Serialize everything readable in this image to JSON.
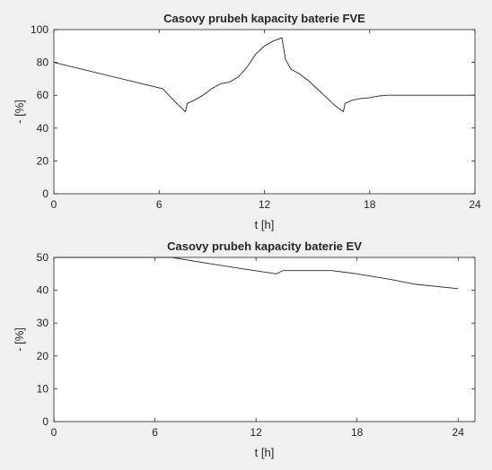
{
  "colors": {
    "figure_bg": "#f0f0f0",
    "axes_bg": "#ffffff",
    "line": "#262626",
    "axis": "#262626"
  },
  "chart_data": [
    {
      "type": "line",
      "title": "Casovy prubeh kapacity baterie FVE",
      "xlabel": "t [h]",
      "ylabel": "- [%]",
      "xlim": [
        0,
        24
      ],
      "ylim": [
        0,
        100
      ],
      "xticks": [
        0,
        6,
        12,
        18,
        24
      ],
      "yticks": [
        0,
        20,
        40,
        60,
        80,
        100
      ],
      "grid": false,
      "series": [
        {
          "x": [
            0,
            6.2,
            7.0,
            7.5,
            7.6,
            8.0,
            8.5,
            9.0,
            9.5,
            10.0,
            10.5,
            11.0,
            11.5,
            12.0,
            12.5,
            13.0,
            13.2,
            13.5,
            14.0,
            14.5,
            15.0,
            15.5,
            16.0,
            16.5,
            16.6,
            17.0,
            17.5,
            18.0,
            18.5,
            19.0,
            19.5,
            24.0
          ],
          "y": [
            80,
            64,
            55,
            50,
            55,
            57,
            60,
            64,
            67,
            68,
            71,
            77,
            85,
            90,
            93,
            95,
            82,
            76,
            73,
            69,
            64,
            59,
            54,
            50,
            55,
            57,
            58,
            58.5,
            59.5,
            60,
            60,
            60
          ]
        }
      ]
    },
    {
      "type": "line",
      "title": "Casovy prubeh kapacity baterie EV",
      "xlabel": "t [h]",
      "ylabel": "- [%]",
      "xlim": [
        0,
        25
      ],
      "ylim": [
        0,
        50
      ],
      "xticks": [
        0,
        6,
        12,
        18,
        24
      ],
      "yticks": [
        0,
        10,
        20,
        30,
        40,
        50
      ],
      "grid": false,
      "series": [
        {
          "x": [
            0,
            7.0,
            9.0,
            11.0,
            13.2,
            13.6,
            16.5,
            18.0,
            20.0,
            21.5,
            24.0
          ],
          "y": [
            50,
            50,
            48.3,
            46.7,
            45.0,
            46.0,
            46.0,
            45.0,
            43.3,
            41.8,
            40.5
          ]
        }
      ]
    }
  ]
}
